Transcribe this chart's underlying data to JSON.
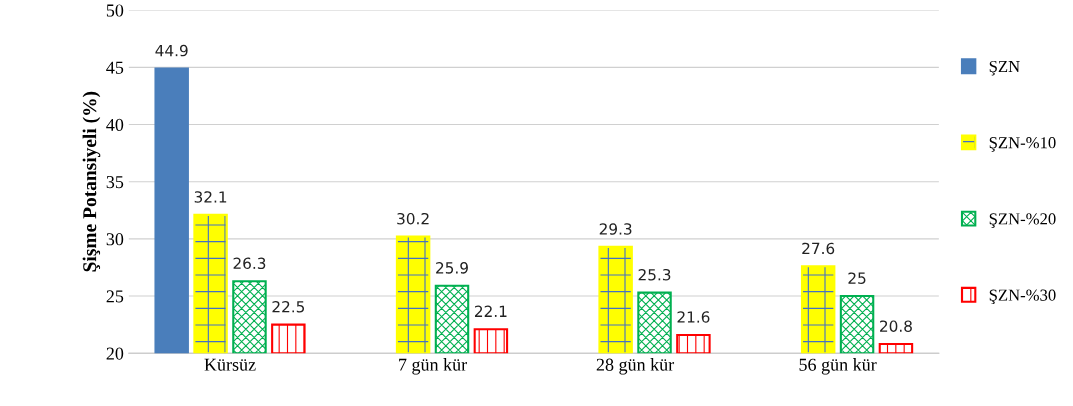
{
  "chart_data": {
    "type": "bar",
    "ylabel": "Şişme Potansiyeli (%)",
    "categories": [
      "Kürsüz",
      "7 gün kür",
      "28 gün kür",
      "56 gün kür"
    ],
    "series": [
      {
        "name": "ŞZN",
        "color": "#4a7ebb",
        "values": [
          44.9,
          null,
          null,
          null
        ]
      },
      {
        "name": "ŞZN-%10",
        "color": "#ffff00",
        "values": [
          32.1,
          30.2,
          29.3,
          27.6
        ]
      },
      {
        "name": "ŞZN-%20",
        "color": "#00b050",
        "values": [
          26.3,
          25.9,
          25.3,
          25
        ]
      },
      {
        "name": "ŞZN-%30",
        "color": "#ff0000",
        "values": [
          22.5,
          22.1,
          21.6,
          20.8
        ]
      }
    ],
    "ylim": [
      20,
      50
    ],
    "yticks": [
      20,
      25,
      30,
      35,
      40,
      45,
      50
    ],
    "grid": "y",
    "legend": "right",
    "data_labels": true
  }
}
